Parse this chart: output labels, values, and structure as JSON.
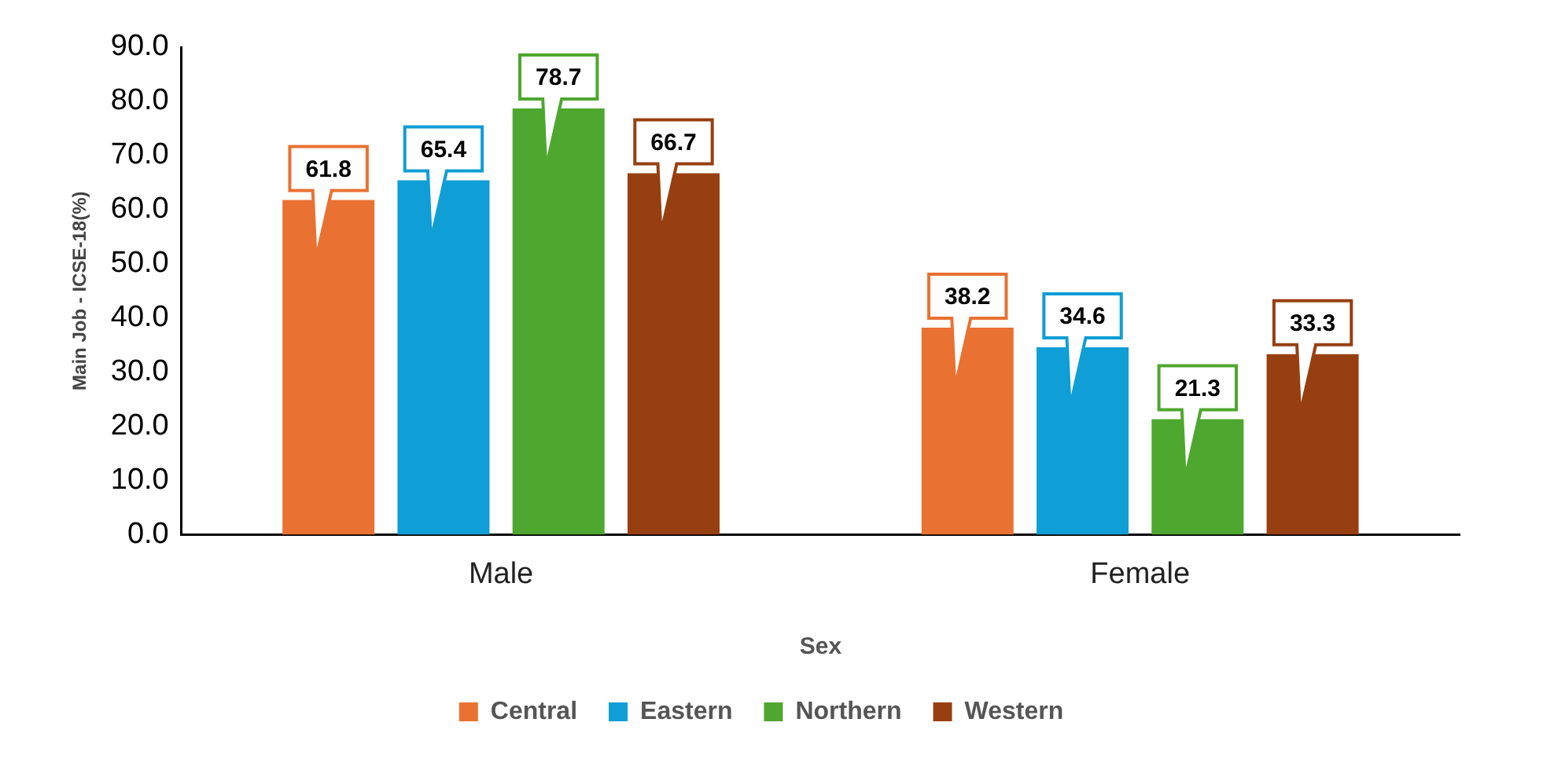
{
  "chart_data": {
    "type": "bar",
    "xlabel": "Sex",
    "ylabel": "Main Job - ICSE-18(%)",
    "categories": [
      "Male",
      "Female"
    ],
    "series": [
      {
        "name": "Central",
        "color": "#e97132",
        "values": [
          61.8,
          38.2
        ]
      },
      {
        "name": "Eastern",
        "color": "#0f9ed5",
        "values": [
          65.4,
          34.6
        ]
      },
      {
        "name": "Northern",
        "color": "#4ea72e",
        "values": [
          78.7,
          21.3
        ]
      },
      {
        "name": "Western",
        "color": "#973f10",
        "values": [
          66.7,
          33.3
        ]
      }
    ],
    "ylim": [
      0,
      90
    ],
    "yticks": [
      {
        "value": 0,
        "label": "0.0"
      },
      {
        "value": 10,
        "label": "10.0"
      },
      {
        "value": 20,
        "label": "20.0"
      },
      {
        "value": 30,
        "label": "30.0"
      },
      {
        "value": 40,
        "label": "40.0"
      },
      {
        "value": 50,
        "label": "50.0"
      },
      {
        "value": 60,
        "label": "60.0"
      },
      {
        "value": 70,
        "label": "70.0"
      },
      {
        "value": 80,
        "label": "80.0"
      },
      {
        "value": 90,
        "label": "90.0"
      }
    ],
    "grid": false,
    "legend": "bottom",
    "data_labels": true
  }
}
